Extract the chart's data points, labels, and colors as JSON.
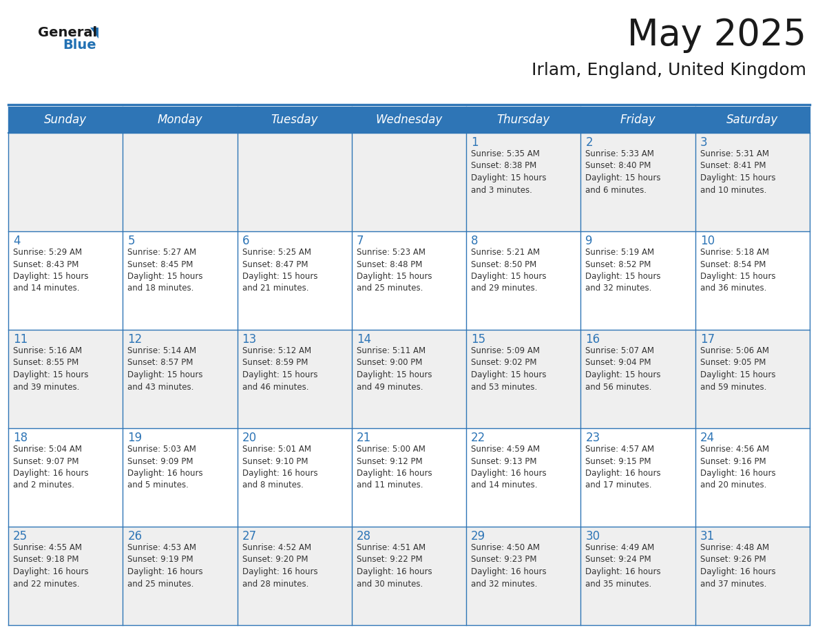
{
  "title": "May 2025",
  "subtitle": "Irlam, England, United Kingdom",
  "days_of_week": [
    "Sunday",
    "Monday",
    "Tuesday",
    "Wednesday",
    "Thursday",
    "Friday",
    "Saturday"
  ],
  "header_bg": "#2E75B6",
  "header_text": "#FFFFFF",
  "row_bg_odd": "#EFEFEF",
  "row_bg_even": "#FFFFFF",
  "cell_text_color": "#333333",
  "day_num_color": "#2E75B6",
  "border_color": "#2E75B6",
  "logo_general_color": "#1a1a1a",
  "logo_blue_color": "#2271B3",
  "logo_triangle_color": "#2271B3",
  "title_color": "#1a1a1a",
  "subtitle_color": "#1a1a1a",
  "weeks": [
    [
      {
        "day": null,
        "info": null
      },
      {
        "day": null,
        "info": null
      },
      {
        "day": null,
        "info": null
      },
      {
        "day": null,
        "info": null
      },
      {
        "day": "1",
        "info": "Sunrise: 5:35 AM\nSunset: 8:38 PM\nDaylight: 15 hours\nand 3 minutes."
      },
      {
        "day": "2",
        "info": "Sunrise: 5:33 AM\nSunset: 8:40 PM\nDaylight: 15 hours\nand 6 minutes."
      },
      {
        "day": "3",
        "info": "Sunrise: 5:31 AM\nSunset: 8:41 PM\nDaylight: 15 hours\nand 10 minutes."
      }
    ],
    [
      {
        "day": "4",
        "info": "Sunrise: 5:29 AM\nSunset: 8:43 PM\nDaylight: 15 hours\nand 14 minutes."
      },
      {
        "day": "5",
        "info": "Sunrise: 5:27 AM\nSunset: 8:45 PM\nDaylight: 15 hours\nand 18 minutes."
      },
      {
        "day": "6",
        "info": "Sunrise: 5:25 AM\nSunset: 8:47 PM\nDaylight: 15 hours\nand 21 minutes."
      },
      {
        "day": "7",
        "info": "Sunrise: 5:23 AM\nSunset: 8:48 PM\nDaylight: 15 hours\nand 25 minutes."
      },
      {
        "day": "8",
        "info": "Sunrise: 5:21 AM\nSunset: 8:50 PM\nDaylight: 15 hours\nand 29 minutes."
      },
      {
        "day": "9",
        "info": "Sunrise: 5:19 AM\nSunset: 8:52 PM\nDaylight: 15 hours\nand 32 minutes."
      },
      {
        "day": "10",
        "info": "Sunrise: 5:18 AM\nSunset: 8:54 PM\nDaylight: 15 hours\nand 36 minutes."
      }
    ],
    [
      {
        "day": "11",
        "info": "Sunrise: 5:16 AM\nSunset: 8:55 PM\nDaylight: 15 hours\nand 39 minutes."
      },
      {
        "day": "12",
        "info": "Sunrise: 5:14 AM\nSunset: 8:57 PM\nDaylight: 15 hours\nand 43 minutes."
      },
      {
        "day": "13",
        "info": "Sunrise: 5:12 AM\nSunset: 8:59 PM\nDaylight: 15 hours\nand 46 minutes."
      },
      {
        "day": "14",
        "info": "Sunrise: 5:11 AM\nSunset: 9:00 PM\nDaylight: 15 hours\nand 49 minutes."
      },
      {
        "day": "15",
        "info": "Sunrise: 5:09 AM\nSunset: 9:02 PM\nDaylight: 15 hours\nand 53 minutes."
      },
      {
        "day": "16",
        "info": "Sunrise: 5:07 AM\nSunset: 9:04 PM\nDaylight: 15 hours\nand 56 minutes."
      },
      {
        "day": "17",
        "info": "Sunrise: 5:06 AM\nSunset: 9:05 PM\nDaylight: 15 hours\nand 59 minutes."
      }
    ],
    [
      {
        "day": "18",
        "info": "Sunrise: 5:04 AM\nSunset: 9:07 PM\nDaylight: 16 hours\nand 2 minutes."
      },
      {
        "day": "19",
        "info": "Sunrise: 5:03 AM\nSunset: 9:09 PM\nDaylight: 16 hours\nand 5 minutes."
      },
      {
        "day": "20",
        "info": "Sunrise: 5:01 AM\nSunset: 9:10 PM\nDaylight: 16 hours\nand 8 minutes."
      },
      {
        "day": "21",
        "info": "Sunrise: 5:00 AM\nSunset: 9:12 PM\nDaylight: 16 hours\nand 11 minutes."
      },
      {
        "day": "22",
        "info": "Sunrise: 4:59 AM\nSunset: 9:13 PM\nDaylight: 16 hours\nand 14 minutes."
      },
      {
        "day": "23",
        "info": "Sunrise: 4:57 AM\nSunset: 9:15 PM\nDaylight: 16 hours\nand 17 minutes."
      },
      {
        "day": "24",
        "info": "Sunrise: 4:56 AM\nSunset: 9:16 PM\nDaylight: 16 hours\nand 20 minutes."
      }
    ],
    [
      {
        "day": "25",
        "info": "Sunrise: 4:55 AM\nSunset: 9:18 PM\nDaylight: 16 hours\nand 22 minutes."
      },
      {
        "day": "26",
        "info": "Sunrise: 4:53 AM\nSunset: 9:19 PM\nDaylight: 16 hours\nand 25 minutes."
      },
      {
        "day": "27",
        "info": "Sunrise: 4:52 AM\nSunset: 9:20 PM\nDaylight: 16 hours\nand 28 minutes."
      },
      {
        "day": "28",
        "info": "Sunrise: 4:51 AM\nSunset: 9:22 PM\nDaylight: 16 hours\nand 30 minutes."
      },
      {
        "day": "29",
        "info": "Sunrise: 4:50 AM\nSunset: 9:23 PM\nDaylight: 16 hours\nand 32 minutes."
      },
      {
        "day": "30",
        "info": "Sunrise: 4:49 AM\nSunset: 9:24 PM\nDaylight: 16 hours\nand 35 minutes."
      },
      {
        "day": "31",
        "info": "Sunrise: 4:48 AM\nSunset: 9:26 PM\nDaylight: 16 hours\nand 37 minutes."
      }
    ]
  ]
}
